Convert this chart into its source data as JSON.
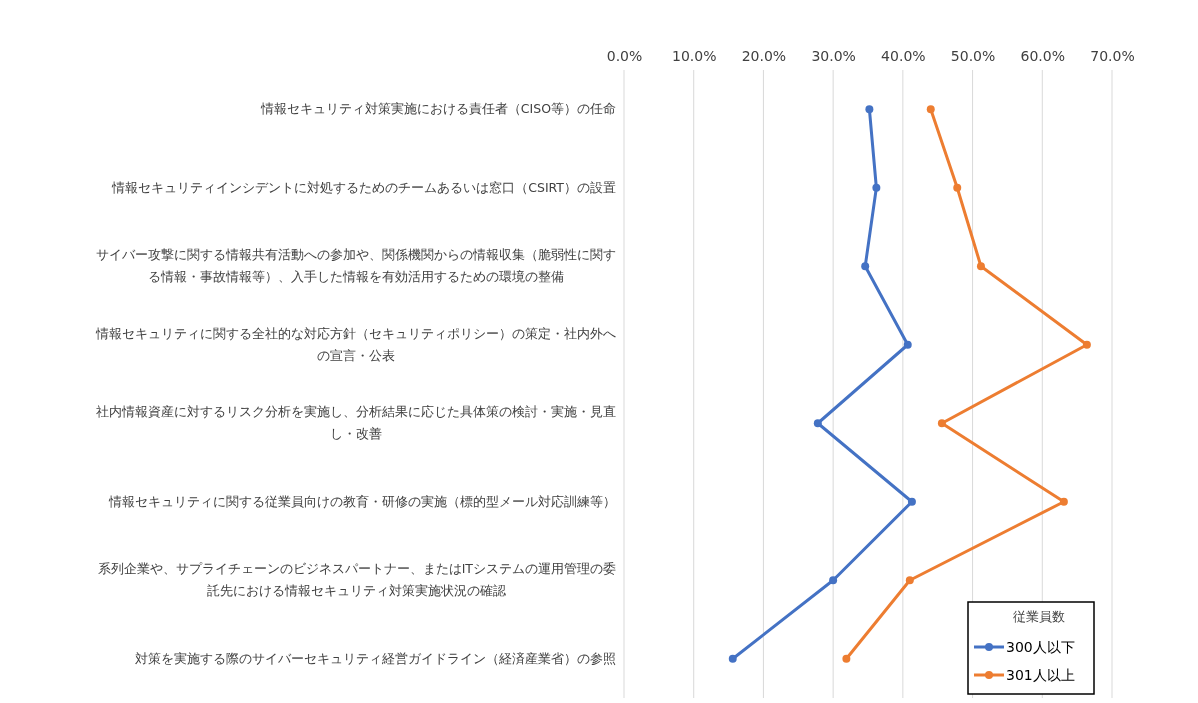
{
  "chart_data": {
    "type": "line",
    "orientation": "horizontal",
    "categories": [
      "情報セキュリティ対策実施における責任者（CISO等）の任命",
      "情報セキュリティインシデントに対処するためのチームあるいは窓口（CSIRT）の設置",
      "サイバー攻撃に関する情報共有活動への参加や、関係機関からの情報収集（脆弱性に関する情報・事故情報等）、入手した情報を有効活用するための環境の整備",
      "情報セキュリティに関する全社的な対応方針（セキュリティポリシー）の策定・社内外への宣言・公表",
      "社内情報資産に対するリスク分析を実施し、分析結果に応じた具体策の検討・実施・見直し・改善",
      "情報セキュリティに関する従業員向けの教育・研修の実施（標的型メール対応訓練等）",
      "系列企業や、サプライチェーンのビジネスパートナー、またはITシステムの運用管理の委託先における情報セキュリティ対策実施状況の確認",
      "対策を実施する際のサイバーセキュリティ経営ガイドライン（経済産業省）の参照"
    ],
    "series": [
      {
        "name": "300人以下",
        "color": "#4472c4",
        "values": [
          35.2,
          36.2,
          34.6,
          40.7,
          27.8,
          41.3,
          30.0,
          15.6
        ]
      },
      {
        "name": "301人以上",
        "color": "#ed7d31",
        "values": [
          44.0,
          47.8,
          51.2,
          66.4,
          45.6,
          63.1,
          41.0,
          31.9
        ]
      }
    ],
    "xlim": [
      0,
      70
    ],
    "xticks": [
      {
        "value": 0,
        "label": "0.0%"
      },
      {
        "value": 10,
        "label": "10.0%"
      },
      {
        "value": 20,
        "label": "20.0%"
      },
      {
        "value": 30,
        "label": "30.0%"
      },
      {
        "value": 40,
        "label": "40.0%"
      },
      {
        "value": 50,
        "label": "50.0%"
      },
      {
        "value": 60,
        "label": "60.0%"
      },
      {
        "value": 70,
        "label": "70.0%"
      }
    ],
    "grid": "x",
    "legend": "bottom right",
    "legend_title": "従業員数",
    "marker": "circle",
    "line_style": "solid"
  }
}
